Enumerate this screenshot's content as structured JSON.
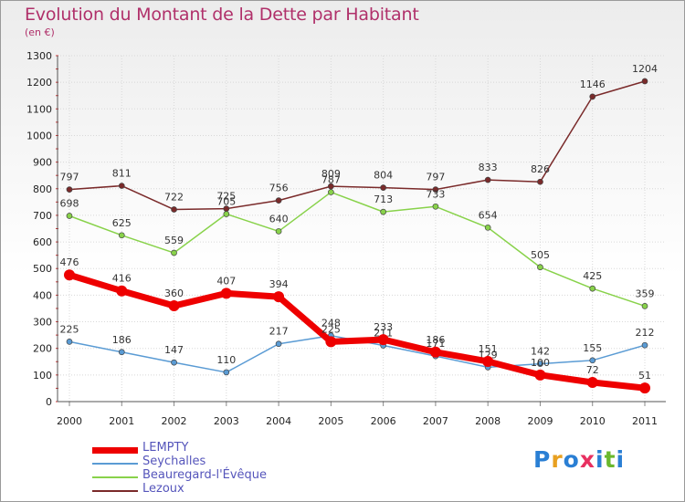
{
  "title": "Evolution du Montant de la Dette par Habitant",
  "subtitle": "(en €)",
  "logo_text": "Proxiti",
  "chart_data": {
    "type": "line",
    "title": "Evolution du Montant de la Dette par Habitant",
    "subtitle": "(en €)",
    "ylim": [
      0,
      1300
    ],
    "yticks": [
      0,
      100,
      200,
      300,
      400,
      500,
      600,
      700,
      800,
      900,
      1000,
      1100,
      1200,
      1300
    ],
    "categories": [
      "2000",
      "2001",
      "2002",
      "2003",
      "2004",
      "2005",
      "2006",
      "2007",
      "2008",
      "2009",
      "2010",
      "2011"
    ],
    "grid": true,
    "legend_position": "bottom-left",
    "series": [
      {
        "name": "LEMPTY",
        "color": "#ee0000",
        "values": [
          476,
          416,
          360,
          407,
          394,
          225,
          233,
          186,
          151,
          100,
          72,
          51
        ]
      },
      {
        "name": "Seychalles",
        "color": "#5a9bd4",
        "values": [
          225,
          186,
          147,
          110,
          217,
          248,
          211,
          171,
          129,
          142,
          155,
          212
        ]
      },
      {
        "name": "Beauregard-l'Évêque",
        "color": "#88d24a",
        "values": [
          698,
          625,
          559,
          705,
          640,
          787,
          713,
          733,
          654,
          505,
          425,
          359
        ]
      },
      {
        "name": "Lezoux",
        "color": "#7a2a2a",
        "values": [
          797,
          811,
          722,
          725,
          756,
          809,
          804,
          797,
          833,
          826,
          1146,
          1204
        ]
      }
    ]
  }
}
